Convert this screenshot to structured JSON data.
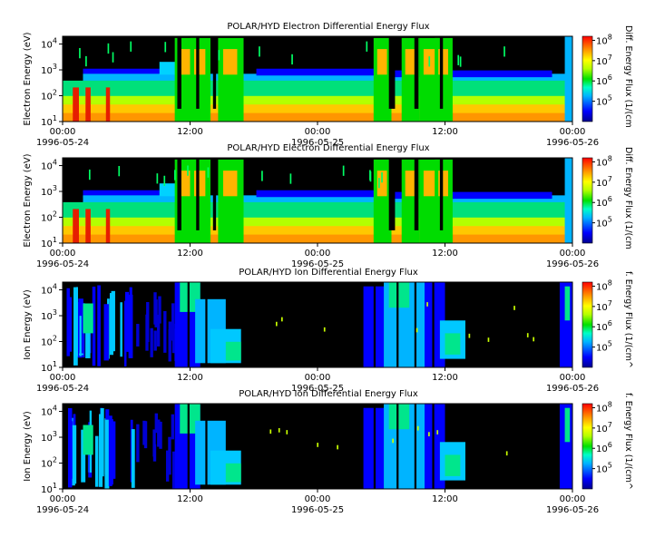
{
  "chart_data": [
    {
      "type": "heatmap",
      "title": "POLAR/HYD  Electron Differential Energy Flux",
      "ylabel": "Electron Energy (eV)",
      "colorbar_label": "Diff. Energy Flux (1/(cm",
      "y_ticks": [
        "10^1",
        "10^2",
        "10^3",
        "10^4"
      ],
      "colorbar_ticks": [
        "10^5",
        "10^6",
        "10^7",
        "10^8"
      ],
      "x_ticks": [
        "00:00",
        "12:00",
        "00:00",
        "12:00",
        "00:00"
      ],
      "date_labels": [
        "1996-05-24",
        "1996-05-25",
        "1996-05-26"
      ]
    },
    {
      "type": "heatmap",
      "title": "POLAR/HYD  Electron Differential Energy Flux",
      "ylabel": "Electron Energy (eV)",
      "colorbar_label": "Diff. Energy Flux (1/(cm",
      "y_ticks": [
        "10^1",
        "10^2",
        "10^3",
        "10^4"
      ],
      "colorbar_ticks": [
        "10^5",
        "10^6",
        "10^7",
        "10^8"
      ],
      "x_ticks": [
        "00:00",
        "12:00",
        "00:00",
        "12:00",
        "00:00"
      ],
      "date_labels": [
        "1996-05-24",
        "1996-05-25",
        "1996-05-26"
      ]
    },
    {
      "type": "heatmap",
      "title": "POLAR/HYD  Ion Differential Energy Flux",
      "ylabel": "Ion Energy (eV)",
      "colorbar_label": "f. Energy Flux (1/(cm^",
      "y_ticks": [
        "10^1",
        "10^2",
        "10^3",
        "10^4"
      ],
      "colorbar_ticks": [
        "10^5",
        "10^6",
        "10^7",
        "10^8"
      ],
      "x_ticks": [
        "00:00",
        "12:00",
        "00:00",
        "12:00",
        "00:00"
      ],
      "date_labels": [
        "1996-05-24",
        "1996-05-25",
        "1996-05-26"
      ]
    },
    {
      "type": "heatmap",
      "title": "POLAR/HYD  Ion Differential Energy Flux",
      "ylabel": "Ion Energy (eV)",
      "colorbar_label": "f. Energy Flux (1/(cm^",
      "y_ticks": [
        "10^1",
        "10^2",
        "10^3",
        "10^4"
      ],
      "colorbar_ticks": [
        "10^5",
        "10^6",
        "10^7",
        "10^8"
      ],
      "x_ticks": [
        "00:00",
        "12:00",
        "00:00",
        "12:00",
        "00:00"
      ],
      "date_labels": [
        "1996-05-24",
        "1996-05-25",
        "1996-05-26"
      ]
    }
  ]
}
